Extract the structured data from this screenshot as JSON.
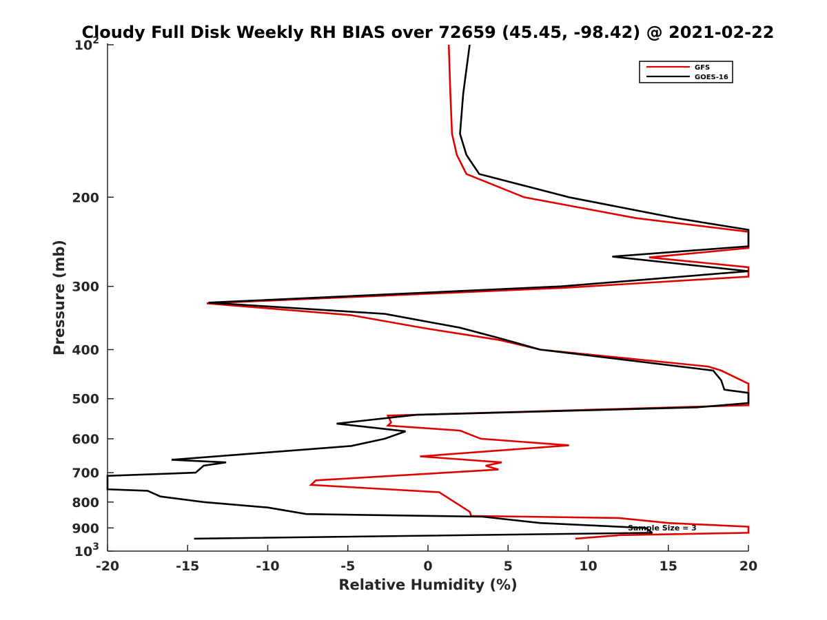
{
  "chart_data": {
    "type": "line",
    "title": "Cloudy Full Disk Weekly RH BIAS over 72659 (45.45, -98.42) @ 2021-02-22",
    "xlabel": "Relative Humidity (%)",
    "ylabel": "Pressure (mb)",
    "xlim": [
      -20,
      20
    ],
    "ylim": [
      100,
      1000
    ],
    "yscale": "log",
    "y_reversed": true,
    "grid": false,
    "legend_position": "top-right",
    "x_ticks": [
      "-20",
      "-15",
      "-10",
      "-5",
      "0",
      "5",
      "10",
      "15",
      "20"
    ],
    "y_ticks": [
      {
        "value": 100,
        "base": "10",
        "exp": "2"
      },
      {
        "value": 200,
        "label": "200"
      },
      {
        "value": 300,
        "label": "300"
      },
      {
        "value": 400,
        "label": "400"
      },
      {
        "value": 500,
        "label": "500"
      },
      {
        "value": 600,
        "label": "600"
      },
      {
        "value": 700,
        "label": "700"
      },
      {
        "value": 800,
        "label": "800"
      },
      {
        "value": 900,
        "label": "900"
      },
      {
        "value": 1000,
        "base": "10",
        "exp": "3"
      }
    ],
    "annotation": "Sample Size = 3",
    "series": [
      {
        "name": "GFS",
        "color": "#e00000",
        "points": [
          [
            1.3,
            100
          ],
          [
            1.4,
            125
          ],
          [
            1.5,
            150
          ],
          [
            1.8,
            165
          ],
          [
            2.4,
            180
          ],
          [
            6.0,
            200
          ],
          [
            13.0,
            220
          ],
          [
            20.0,
            234
          ],
          [
            20.0,
            252
          ],
          [
            13.8,
            263
          ],
          [
            20.0,
            275
          ],
          [
            20.0,
            287
          ],
          [
            8.5,
            302
          ],
          [
            -13.8,
            324
          ],
          [
            -4.8,
            342
          ],
          [
            -0.2,
            363
          ],
          [
            4.5,
            383
          ],
          [
            7.0,
            400
          ],
          [
            17.5,
            432
          ],
          [
            18.3,
            440
          ],
          [
            20.0,
            467
          ],
          [
            20.0,
            515
          ],
          [
            -2.5,
            540
          ],
          [
            -2.3,
            557
          ],
          [
            -2.5,
            565
          ],
          [
            2.0,
            578
          ],
          [
            3.3,
            600
          ],
          [
            8.8,
            618
          ],
          [
            -0.5,
            650
          ],
          [
            4.6,
            668
          ],
          [
            3.6,
            678
          ],
          [
            4.4,
            690
          ],
          [
            -7.0,
            725
          ],
          [
            -7.3,
            740
          ],
          [
            0.7,
            765
          ],
          [
            2.6,
            836
          ],
          [
            2.7,
            852
          ],
          [
            11.9,
            860
          ],
          [
            15.0,
            880
          ],
          [
            20.0,
            895
          ],
          [
            20.0,
            920
          ],
          [
            12.0,
            930
          ],
          [
            9.2,
            945
          ]
        ]
      },
      {
        "name": "GOES-16",
        "color": "#000000",
        "points": [
          [
            2.6,
            100
          ],
          [
            2.2,
            125
          ],
          [
            2.0,
            150
          ],
          [
            2.4,
            165
          ],
          [
            3.2,
            180
          ],
          [
            8.8,
            200
          ],
          [
            15.5,
            220
          ],
          [
            20.0,
            232
          ],
          [
            20.0,
            250
          ],
          [
            11.5,
            262
          ],
          [
            20.0,
            280
          ],
          [
            8.3,
            300
          ],
          [
            -13.7,
            323
          ],
          [
            -2.7,
            340
          ],
          [
            2.0,
            362
          ],
          [
            4.5,
            380
          ],
          [
            7.0,
            400
          ],
          [
            17.8,
            440
          ],
          [
            18.3,
            460
          ],
          [
            18.5,
            480
          ],
          [
            20.0,
            487
          ],
          [
            20.0,
            510
          ],
          [
            16.8,
            520
          ],
          [
            -0.7,
            538
          ],
          [
            -5.7,
            560
          ],
          [
            -1.4,
            580
          ],
          [
            -2.7,
            600
          ],
          [
            -4.8,
            620
          ],
          [
            -16.0,
            660
          ],
          [
            -12.6,
            668
          ],
          [
            -14.0,
            678
          ],
          [
            -14.5,
            700
          ],
          [
            -20.0,
            710
          ],
          [
            -20.0,
            755
          ],
          [
            -17.5,
            760
          ],
          [
            -16.7,
            780
          ],
          [
            -14.0,
            800
          ],
          [
            -10.0,
            820
          ],
          [
            -7.6,
            845
          ],
          [
            3.4,
            855
          ],
          [
            7.0,
            880
          ],
          [
            13.6,
            900
          ],
          [
            14.0,
            920
          ],
          [
            -14.6,
            945
          ]
        ]
      }
    ]
  }
}
